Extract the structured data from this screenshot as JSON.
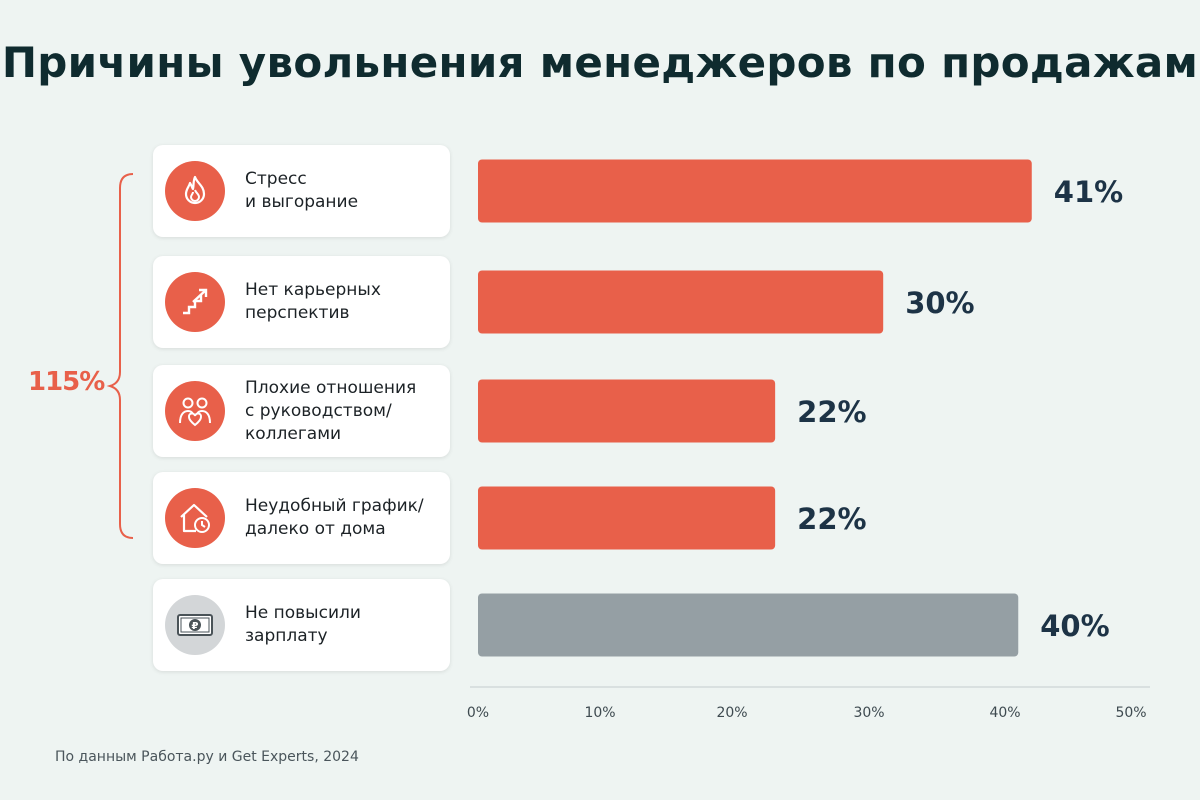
{
  "page": {
    "title": "Причины увольнения менеджеров по продажам",
    "source": "По данным Работа.ру и Get Experts, 2024",
    "brace_label": "115%"
  },
  "colors": {
    "accent": "#e8604a",
    "gray_bar": "#959fa4",
    "value_text": "#1d3346",
    "icon_gray": "#d3d6d8"
  },
  "items": [
    {
      "label": "Стресс\nи выгорание",
      "icon": "flame-icon",
      "value": 41,
      "color": "#e8604a"
    },
    {
      "label": "Нет карьерных\nперспектив",
      "icon": "career-stairs-icon",
      "value": 30,
      "color": "#e8604a"
    },
    {
      "label": "Плохие отношения\nс руководством/\nколлегами",
      "icon": "people-heart-icon",
      "value": 22,
      "color": "#e8604a"
    },
    {
      "label": "Неудобный график/\nдалеко от дома",
      "icon": "house-clock-icon",
      "value": 22,
      "color": "#e8604a"
    },
    {
      "label": "Не повысили\nзарплату",
      "icon": "ruble-banknote-icon",
      "value": 40,
      "color": "#959fa4"
    }
  ],
  "chart_data": {
    "type": "bar",
    "orientation": "horizontal",
    "categories": [
      "Стресс и выгорание",
      "Нет карьерных перспектив",
      "Плохие отношения с руководством/коллегами",
      "Неудобный график/далеко от дома",
      "Не повысили зарплату"
    ],
    "values": [
      41,
      30,
      22,
      22,
      40
    ],
    "value_labels": [
      "41%",
      "30%",
      "22%",
      "22%",
      "40%"
    ],
    "xlim": [
      0,
      50
    ],
    "xticks": [
      "0%",
      "10%",
      "20%",
      "30%",
      "40%",
      "50%"
    ],
    "grid": false,
    "legend": "none",
    "annotations": [
      {
        "text": "115%",
        "spans": [
          "Стресс и выгорание",
          "Нет карьерных перспектив",
          "Плохие отношения с руководством/коллегами",
          "Неудобный график/далеко от дома"
        ]
      }
    ]
  }
}
